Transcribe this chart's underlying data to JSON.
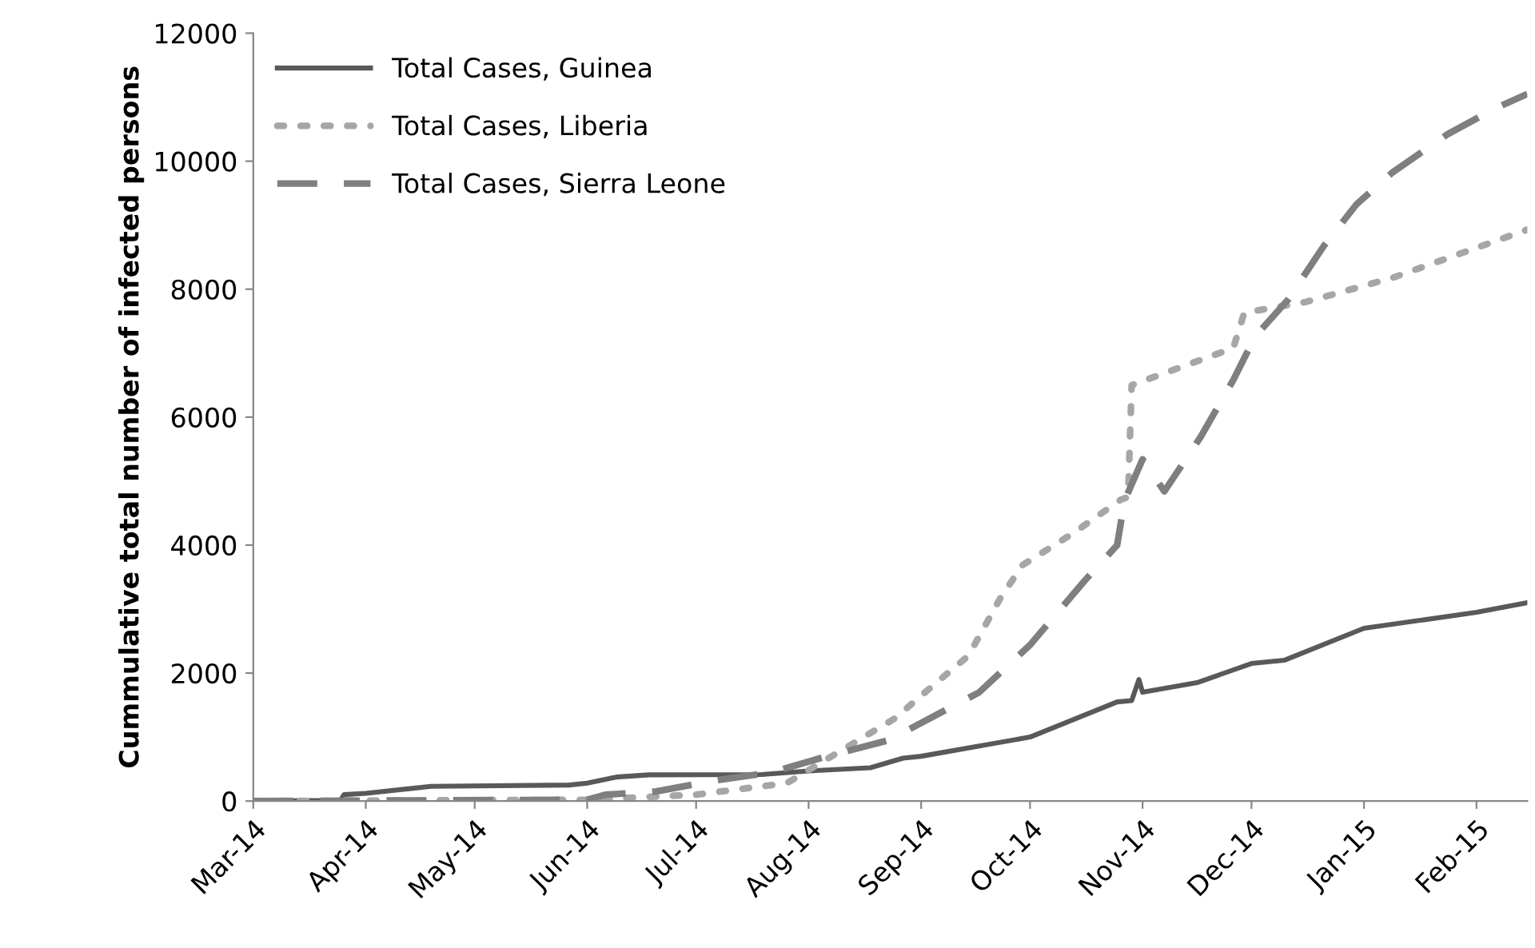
{
  "chart_data": {
    "type": "line",
    "ylabel": "Cummulative total number of infected persons",
    "xlim": [
      "2014-03-01",
      "2015-02-15"
    ],
    "xticks": [
      {
        "value": "2014-03-01",
        "label": "Mar-14"
      },
      {
        "value": "2014-04-01",
        "label": "Apr-14"
      },
      {
        "value": "2014-05-01",
        "label": "May-14"
      },
      {
        "value": "2014-06-01",
        "label": "Jun-14"
      },
      {
        "value": "2014-07-01",
        "label": "Jul-14"
      },
      {
        "value": "2014-08-01",
        "label": "Aug-14"
      },
      {
        "value": "2014-09-01",
        "label": "Sep-14"
      },
      {
        "value": "2014-10-01",
        "label": "Oct-14"
      },
      {
        "value": "2014-11-01",
        "label": "Nov-14"
      },
      {
        "value": "2014-12-01",
        "label": "Dec-14"
      },
      {
        "value": "2015-01-01",
        "label": "Jan-15"
      },
      {
        "value": "2015-02-01",
        "label": "Feb-15"
      }
    ],
    "ylim": [
      0,
      12000
    ],
    "yticks": [
      0,
      2000,
      4000,
      6000,
      8000,
      10000,
      12000
    ],
    "grid": false,
    "legend": "top left",
    "marker": "none",
    "series": [
      {
        "name": "Total Cases, Guinea",
        "color": "#595959",
        "line_style": "solid",
        "x": [
          "2014-03-01",
          "2014-03-25",
          "2014-03-26",
          "2014-04-01",
          "2014-04-19",
          "2014-05-27",
          "2014-06-01",
          "2014-06-09",
          "2014-06-18",
          "2014-07-19",
          "2014-08-01",
          "2014-08-18",
          "2014-08-27",
          "2014-09-01",
          "2014-10-01",
          "2014-10-25",
          "2014-10-29",
          "2014-10-31",
          "2014-11-01",
          "2014-11-16",
          "2014-12-01",
          "2014-12-10",
          "2015-01-01",
          "2015-02-01",
          "2015-02-15"
        ],
        "values": [
          0,
          10,
          100,
          120,
          230,
          250,
          280,
          375,
          410,
          415,
          470,
          520,
          670,
          700,
          1000,
          1550,
          1570,
          1900,
          1700,
          1850,
          2150,
          2200,
          2700,
          2950,
          3100
        ]
      },
      {
        "name": "Total Cases, Liberia",
        "color": "#a6a6a6",
        "line_style": "dotted",
        "x": [
          "2014-03-01",
          "2014-06-01",
          "2014-07-01",
          "2014-07-26",
          "2014-08-25",
          "2014-08-31",
          "2014-09-14",
          "2014-09-23",
          "2014-09-29",
          "2014-10-13",
          "2014-10-26",
          "2014-10-28",
          "2014-10-29",
          "2014-11-26",
          "2014-11-29",
          "2014-12-16",
          "2015-01-09",
          "2015-02-15"
        ],
        "values": [
          0,
          20,
          100,
          280,
          1300,
          1600,
          2270,
          3190,
          3690,
          4190,
          4710,
          4750,
          6500,
          7080,
          7630,
          7800,
          8180,
          8930
        ]
      },
      {
        "name": "Total Cases, Sierra Leone",
        "color": "#7f7f7f",
        "line_style": "dashed",
        "x": [
          "2014-03-01",
          "2014-06-01",
          "2014-06-06",
          "2014-06-20",
          "2014-07-06",
          "2014-07-22",
          "2014-08-06",
          "2014-08-23",
          "2014-09-17",
          "2014-10-01",
          "2014-10-16",
          "2014-10-25",
          "2014-10-27",
          "2014-11-01",
          "2014-11-07",
          "2014-11-17",
          "2014-11-26",
          "2014-12-02",
          "2014-12-11",
          "2014-12-21",
          "2014-12-30",
          "2015-01-09",
          "2015-01-24",
          "2015-02-06",
          "2015-02-15"
        ],
        "values": [
          0,
          20,
          100,
          150,
          320,
          450,
          700,
          950,
          1700,
          2440,
          3440,
          4000,
          4690,
          5340,
          4840,
          5690,
          6580,
          7260,
          7830,
          8680,
          9330,
          9830,
          10420,
          10820,
          11050
        ]
      }
    ]
  }
}
